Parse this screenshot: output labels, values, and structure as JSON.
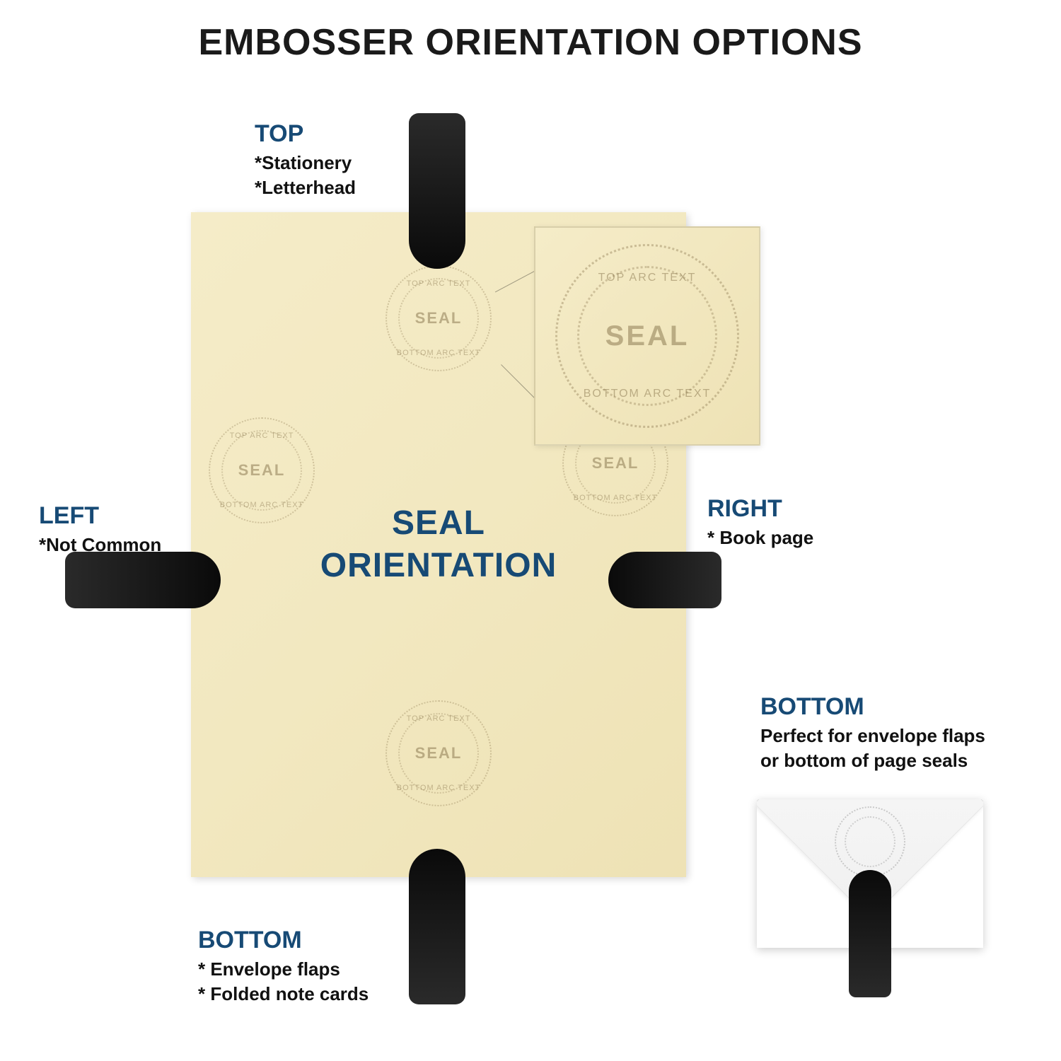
{
  "title": "EMBOSSER ORIENTATION OPTIONS",
  "center_text": {
    "line1": "SEAL",
    "line2": "ORIENTATION"
  },
  "seal": {
    "center": "SEAL",
    "top_arc": "TOP ARC TEXT",
    "bottom_arc": "BOTTOM ARC TEXT"
  },
  "labels": {
    "top": {
      "title": "TOP",
      "line1": "*Stationery",
      "line2": "*Letterhead"
    },
    "left": {
      "title": "LEFT",
      "line1": "*Not Common"
    },
    "right": {
      "title": "RIGHT",
      "line1": "* Book page"
    },
    "bottom": {
      "title": "BOTTOM",
      "line1": "* Envelope flaps",
      "line2": "* Folded note cards"
    },
    "bottom2": {
      "title": "BOTTOM",
      "line1": "Perfect for envelope flaps",
      "line2": "or bottom of page seals"
    }
  },
  "colors": {
    "title_color": "#1a1a1a",
    "accent": "#174a75",
    "paper_light": "#f5ecc8",
    "paper_dark": "#eee2b5",
    "embosser": "#1a1a1a",
    "background": "#ffffff"
  },
  "typography": {
    "title_fontsize": 52,
    "label_title_fontsize": 34,
    "label_line_fontsize": 26,
    "center_fontsize": 48
  }
}
